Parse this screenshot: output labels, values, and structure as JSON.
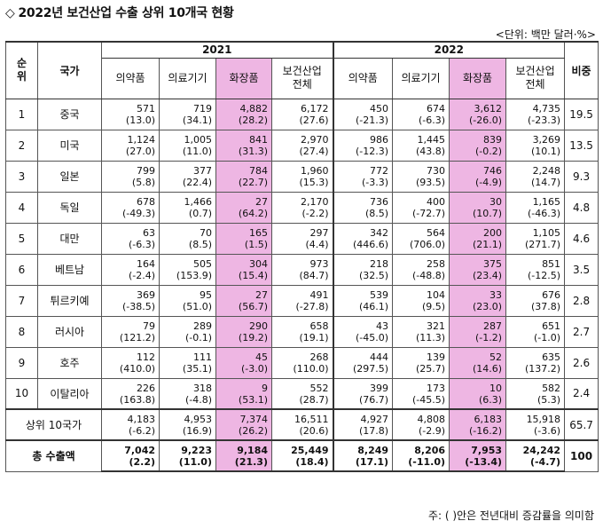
{
  "title": {
    "marker": "◇",
    "text": "2022년 보건산업 수출 상위 10개국 현황"
  },
  "unit": "<단위: 백만 달러·%>",
  "headers": {
    "rank": "순\n위",
    "country": "국가",
    "year1": "2021",
    "year2": "2022",
    "cols": [
      "의약품",
      "의료기기",
      "화장품",
      "보건산업\n전체"
    ],
    "share": "비중"
  },
  "rows": [
    {
      "rank": "1",
      "country": "중국",
      "v2021": [
        "571",
        "719",
        "4,882",
        "6,172"
      ],
      "g2021": [
        "(13.0)",
        "(34.1)",
        "(28.2)",
        "(27.6)"
      ],
      "v2022": [
        "450",
        "674",
        "3,612",
        "4,735"
      ],
      "g2022": [
        "(-21.3)",
        "(-6.3)",
        "(-26.0)",
        "(-23.3)"
      ],
      "share": "19.5"
    },
    {
      "rank": "2",
      "country": "미국",
      "v2021": [
        "1,124",
        "1,005",
        "841",
        "2,970"
      ],
      "g2021": [
        "(27.0)",
        "(11.0)",
        "(31.3)",
        "(27.4)"
      ],
      "v2022": [
        "986",
        "1,445",
        "839",
        "3,269"
      ],
      "g2022": [
        "(-12.3)",
        "(43.8)",
        "(-0.2)",
        "(10.1)"
      ],
      "share": "13.5"
    },
    {
      "rank": "3",
      "country": "일본",
      "v2021": [
        "799",
        "377",
        "784",
        "1,960"
      ],
      "g2021": [
        "(5.8)",
        "(22.4)",
        "(22.7)",
        "(15.3)"
      ],
      "v2022": [
        "772",
        "730",
        "746",
        "2,248"
      ],
      "g2022": [
        "(-3.3)",
        "(93.5)",
        "(-4.9)",
        "(14.7)"
      ],
      "share": "9.3"
    },
    {
      "rank": "4",
      "country": "독일",
      "v2021": [
        "678",
        "1,466",
        "27",
        "2,170"
      ],
      "g2021": [
        "(-49.3)",
        "(0.7)",
        "(64.2)",
        "(-2.2)"
      ],
      "v2022": [
        "736",
        "400",
        "30",
        "1,165"
      ],
      "g2022": [
        "(8.5)",
        "(-72.7)",
        "(10.7)",
        "(-46.3)"
      ],
      "share": "4.8"
    },
    {
      "rank": "5",
      "country": "대만",
      "v2021": [
        "63",
        "70",
        "165",
        "297"
      ],
      "g2021": [
        "(-6.3)",
        "(8.5)",
        "(1.5)",
        "(4.4)"
      ],
      "v2022": [
        "342",
        "564",
        "200",
        "1,105"
      ],
      "g2022": [
        "(446.6)",
        "(706.0)",
        "(21.1)",
        "(271.7)"
      ],
      "share": "4.6"
    },
    {
      "rank": "6",
      "country": "베트남",
      "v2021": [
        "164",
        "505",
        "304",
        "973"
      ],
      "g2021": [
        "(-2.4)",
        "(153.9)",
        "(15.4)",
        "(84.7)"
      ],
      "v2022": [
        "218",
        "258",
        "375",
        "851"
      ],
      "g2022": [
        "(32.5)",
        "(-48.8)",
        "(23.4)",
        "(-12.5)"
      ],
      "share": "3.5"
    },
    {
      "rank": "7",
      "country": "튀르키예",
      "v2021": [
        "369",
        "95",
        "27",
        "491"
      ],
      "g2021": [
        "(-38.5)",
        "(51.0)",
        "(56.7)",
        "(-27.8)"
      ],
      "v2022": [
        "539",
        "104",
        "33",
        "676"
      ],
      "g2022": [
        "(46.1)",
        "(9.5)",
        "(23.0)",
        "(37.8)"
      ],
      "share": "2.8"
    },
    {
      "rank": "8",
      "country": "러시아",
      "v2021": [
        "79",
        "289",
        "290",
        "658"
      ],
      "g2021": [
        "(121.2)",
        "(-0.1)",
        "(19.2)",
        "(19.1)"
      ],
      "v2022": [
        "43",
        "321",
        "287",
        "651"
      ],
      "g2022": [
        "(-45.0)",
        "(11.3)",
        "(-1.2)",
        "(-1.0)"
      ],
      "share": "2.7"
    },
    {
      "rank": "9",
      "country": "호주",
      "v2021": [
        "112",
        "111",
        "45",
        "268"
      ],
      "g2021": [
        "(410.0)",
        "(35.1)",
        "(-3.0)",
        "(110.0)"
      ],
      "v2022": [
        "444",
        "139",
        "52",
        "635"
      ],
      "g2022": [
        "(297.5)",
        "(25.7)",
        "(14.6)",
        "(137.2)"
      ],
      "share": "2.6"
    },
    {
      "rank": "10",
      "country": "이탈리아",
      "v2021": [
        "226",
        "318",
        "9",
        "552"
      ],
      "g2021": [
        "(163.8)",
        "(-4.8)",
        "(53.1)",
        "(28.7)"
      ],
      "v2022": [
        "399",
        "173",
        "10",
        "582"
      ],
      "g2022": [
        "(76.7)",
        "(-45.5)",
        "(6.3)",
        "(5.3)"
      ],
      "share": "2.4"
    }
  ],
  "top10": {
    "label": "상위 10국가",
    "v2021": [
      "4,183",
      "4,953",
      "7,374",
      "16,511"
    ],
    "g2021": [
      "(-6.2)",
      "(16.9)",
      "(26.2)",
      "(20.6)"
    ],
    "v2022": [
      "4,927",
      "4,808",
      "6,183",
      "15,918"
    ],
    "g2022": [
      "(17.8)",
      "(-2.9)",
      "(-16.2)",
      "(-3.6)"
    ],
    "share": "65.7"
  },
  "total": {
    "label": "총 수출액",
    "v2021": [
      "7,042",
      "9,223",
      "9,184",
      "25,449"
    ],
    "g2021": [
      "(2.2)",
      "(11.0)",
      "(21.3)",
      "(18.4)"
    ],
    "v2022": [
      "8,249",
      "8,206",
      "7,953",
      "24,242"
    ],
    "g2022": [
      "(17.1)",
      "(-11.0)",
      "(-13.4)",
      "(-4.7)"
    ],
    "share": "100"
  },
  "note": "주: ( )안은 전년대비 증감률을 의미함",
  "colors": {
    "highlight": "#eeb6e3",
    "border": "#333333"
  }
}
